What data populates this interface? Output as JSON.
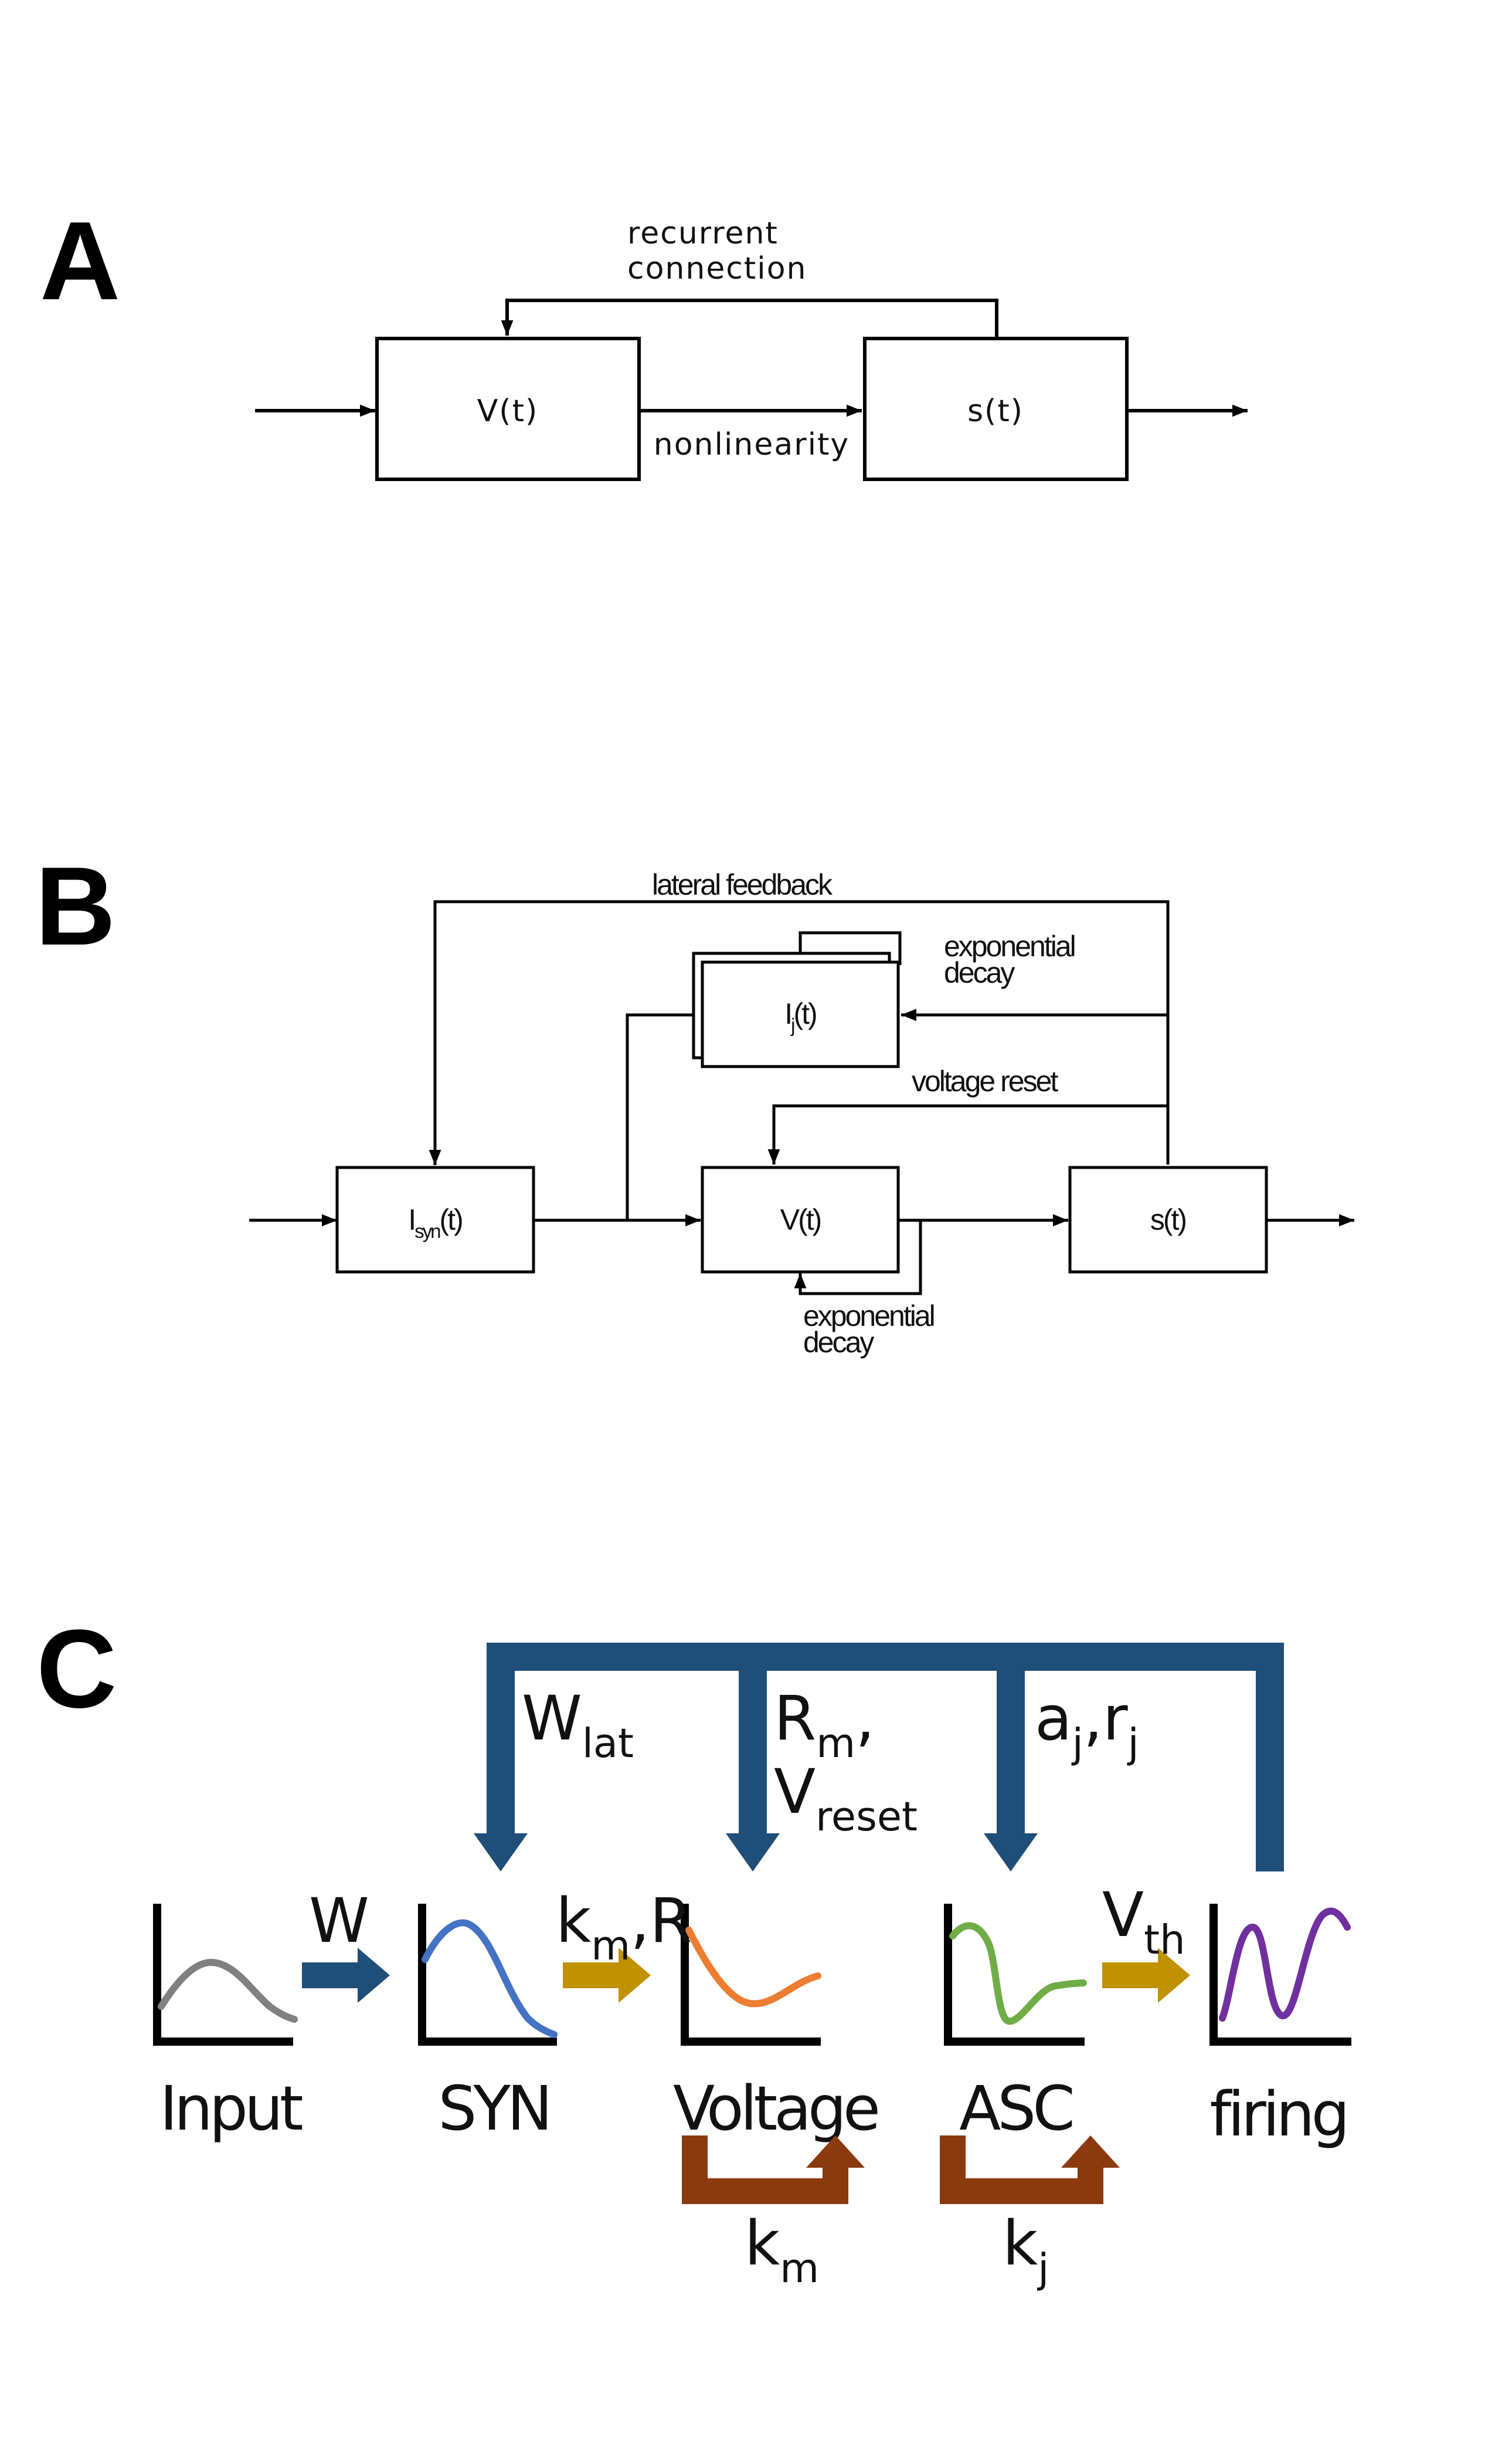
{
  "colors": {
    "feedback_blue": "#1f4e79",
    "forward_gold": "#c09100",
    "decay_brown": "#8b3a0f",
    "input_curve": "#808080",
    "syn_curve": "#4472c4",
    "voltage_curve": "#ed7d31",
    "asc_curve": "#70ad47",
    "firing_curve": "#7030a0"
  },
  "panelA": {
    "letter": "A",
    "recurrent_line1": "recurrent",
    "recurrent_line2": "connection",
    "box1": "V(t)",
    "box2": "s(t)",
    "nonlinearity": "nonlinearity"
  },
  "panelB": {
    "letter": "B",
    "lateral_feedback": "lateral feedback",
    "exp_decay_top_1": "exponential",
    "exp_decay_top_2": "decay",
    "asc_box": {
      "main": "I",
      "sub": "j",
      "rest": "(t)"
    },
    "voltage_reset": "voltage reset",
    "syn_box": {
      "main": "I",
      "sub": "syn",
      "rest": "(t)"
    },
    "v_box": "V(t)",
    "s_box": "s(t)",
    "exp_decay_bottom_1": "exponential",
    "exp_decay_bottom_2": "decay"
  },
  "panelC": {
    "letter": "C",
    "feedback_labels": {
      "wlat": {
        "main": "W",
        "sub": "lat"
      },
      "rm": {
        "main": "R",
        "sub": "m",
        "rest": ","
      },
      "vreset": {
        "main": "V",
        "sub": "reset"
      },
      "aj": {
        "main": "a",
        "sub": "j",
        "mid": ",r",
        "sub2": "j"
      }
    },
    "forward_labels": {
      "w": "W",
      "kmr": {
        "main": "k",
        "sub": "m",
        "rest": ",R"
      },
      "vth": {
        "main": "V",
        "sub": "th"
      }
    },
    "stages": [
      "Input",
      "SYN",
      "Voltage",
      "ASC",
      "firing"
    ],
    "decay_labels": {
      "km": {
        "main": "k",
        "sub": "m"
      },
      "kj": {
        "main": "k",
        "sub": "j"
      }
    }
  }
}
